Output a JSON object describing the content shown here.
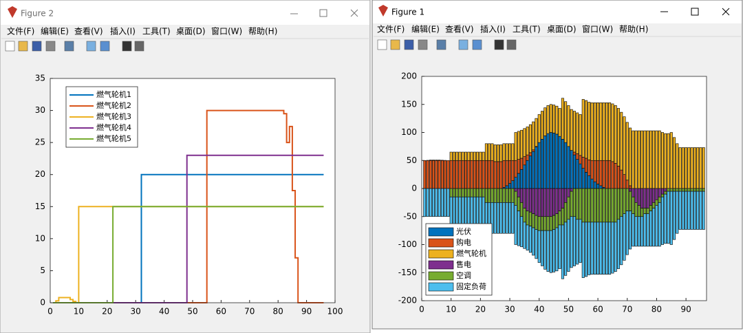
{
  "windows": [
    {
      "title": "Figure 2",
      "menu": [
        "文件(F)",
        "编辑(E)",
        "查看(V)",
        "插入(I)",
        "工具(T)",
        "桌面(D)",
        "窗口(W)",
        "帮助(H)"
      ]
    },
    {
      "title": "Figure 1",
      "menu": [
        "文件(F)",
        "编辑(E)",
        "查看(V)",
        "插入(I)",
        "工具(T)",
        "桌面(D)",
        "窗口(W)",
        "帮助(H)"
      ]
    }
  ],
  "chart_data": [
    {
      "type": "line",
      "step": "post",
      "legend": "upper left",
      "xlim": [
        0,
        100
      ],
      "xticks": [
        0,
        10,
        20,
        30,
        40,
        50,
        60,
        70,
        80,
        90,
        100
      ],
      "ylim": [
        0,
        35
      ],
      "yticks": [
        0,
        5,
        10,
        15,
        20,
        25,
        30,
        35
      ],
      "series": [
        {
          "name": "燃气轮机1",
          "color": "#0072BD",
          "x": [
            1,
            32,
            96
          ],
          "values": [
            0,
            20,
            20
          ]
        },
        {
          "name": "燃气轮机2",
          "color": "#D95319",
          "x": [
            1,
            55,
            82,
            83,
            84,
            85,
            86,
            87,
            96
          ],
          "values": [
            0,
            30,
            29.5,
            25,
            27.5,
            17.5,
            7,
            0,
            0
          ]
        },
        {
          "name": "燃气轮机3",
          "color": "#EDB120",
          "x": [
            1,
            2,
            3,
            7,
            8,
            9,
            10,
            96
          ],
          "values": [
            0,
            0.3,
            0.8,
            0.5,
            0.2,
            0,
            15,
            15
          ]
        },
        {
          "name": "燃气轮机4",
          "color": "#7E2F8E",
          "x": [
            1,
            48,
            96
          ],
          "values": [
            0,
            23,
            23
          ]
        },
        {
          "name": "燃气轮机5",
          "color": "#77AC30",
          "x": [
            1,
            22,
            96
          ],
          "values": [
            0,
            15,
            15
          ]
        }
      ]
    },
    {
      "type": "bar",
      "stacked": true,
      "legend": "lower left",
      "xlim": [
        0,
        97
      ],
      "xticks": [
        0,
        10,
        20,
        30,
        40,
        50,
        60,
        70,
        80,
        90
      ],
      "ylim": [
        -200,
        200
      ],
      "yticks": [
        -200,
        -150,
        -100,
        -50,
        0,
        50,
        100,
        150,
        200
      ],
      "x": [
        1,
        2,
        3,
        4,
        5,
        6,
        7,
        8,
        9,
        10,
        11,
        12,
        13,
        14,
        15,
        16,
        17,
        18,
        19,
        20,
        21,
        22,
        23,
        24,
        25,
        26,
        27,
        28,
        29,
        30,
        31,
        32,
        33,
        34,
        35,
        36,
        37,
        38,
        39,
        40,
        41,
        42,
        43,
        44,
        45,
        46,
        47,
        48,
        49,
        50,
        51,
        52,
        53,
        54,
        55,
        56,
        57,
        58,
        59,
        60,
        61,
        62,
        63,
        64,
        65,
        66,
        67,
        68,
        69,
        70,
        71,
        72,
        73,
        74,
        75,
        76,
        77,
        78,
        79,
        80,
        81,
        82,
        83,
        84,
        85,
        86,
        87,
        88,
        89,
        90,
        91,
        92,
        93,
        94,
        95,
        96
      ],
      "series": [
        {
          "name": "光伏",
          "color": "#0072BD",
          "values": [
            0,
            0,
            0,
            0,
            0,
            0,
            0,
            0,
            0,
            0,
            0,
            0,
            0,
            0,
            0,
            0,
            0,
            0,
            0,
            0,
            0,
            0,
            0,
            0,
            0,
            0,
            0,
            2,
            5,
            9,
            14,
            20,
            27,
            34,
            42,
            50,
            58,
            66,
            74,
            82,
            88,
            94,
            98,
            100,
            99,
            97,
            93,
            88,
            82,
            75,
            68,
            60,
            52,
            44,
            36,
            29,
            23,
            17,
            12,
            8,
            5,
            2,
            0,
            0,
            0,
            0,
            0,
            0,
            0,
            0,
            0,
            0,
            0,
            0,
            0,
            0,
            0,
            0,
            0,
            0,
            0,
            0,
            0,
            0,
            0,
            0,
            0,
            0,
            0,
            0,
            0,
            0,
            0,
            0,
            0,
            0
          ]
        },
        {
          "name": "购电",
          "color": "#D95319",
          "values": [
            50,
            50,
            50,
            50,
            50,
            50,
            50,
            50,
            50,
            50,
            50,
            50,
            50,
            50,
            50,
            50,
            50,
            50,
            50,
            50,
            50,
            50,
            50,
            50,
            48,
            48,
            48,
            48,
            45,
            41,
            36,
            30,
            25,
            20,
            15,
            10,
            6,
            3,
            1,
            0,
            0,
            0,
            0,
            0,
            0,
            0,
            0,
            0,
            0,
            0,
            0,
            5,
            10,
            15,
            20,
            25,
            28,
            33,
            38,
            42,
            45,
            48,
            50,
            50,
            48,
            45,
            40,
            33,
            25,
            15,
            5,
            0,
            0,
            0,
            0,
            0,
            0,
            0,
            0,
            0,
            0,
            0,
            0,
            0,
            0,
            0,
            0,
            0,
            0,
            0,
            0,
            0,
            0,
            0,
            0,
            0
          ]
        },
        {
          "name": "燃气轮机",
          "color": "#EDB120",
          "values": [
            0,
            0.3,
            0.8,
            0.8,
            0.8,
            0.8,
            0.5,
            0.2,
            0,
            15,
            15,
            15,
            15,
            15,
            15,
            15,
            15,
            15,
            15,
            15,
            15,
            30,
            30,
            30,
            30,
            30,
            30,
            30,
            30,
            30,
            30,
            50,
            50,
            50,
            50,
            50,
            50,
            50,
            50,
            50,
            50,
            50,
            50,
            50,
            50,
            50,
            50,
            73,
            73,
            73,
            73,
            73,
            73,
            73,
            103,
            103,
            103,
            103,
            103,
            103,
            103,
            103,
            103,
            103,
            103,
            103,
            103,
            103,
            103,
            103,
            103,
            103,
            103,
            103,
            103,
            103,
            103,
            103,
            103,
            103,
            103,
            100,
            98,
            98,
            100,
            91,
            80,
            73,
            73,
            73,
            73,
            73,
            73,
            73,
            73,
            73
          ]
        },
        {
          "name": "售电",
          "color": "#7E2F8E",
          "values": [
            0,
            0,
            0,
            0,
            0,
            0,
            0,
            0,
            0,
            0,
            0,
            0,
            0,
            0,
            0,
            0,
            0,
            0,
            0,
            0,
            0,
            0,
            0,
            0,
            0,
            0,
            0,
            0,
            0,
            0,
            0,
            -5,
            -15,
            -25,
            -35,
            -40,
            -42,
            -45,
            -48,
            -50,
            -50,
            -50,
            -50,
            -50,
            -48,
            -45,
            -40,
            -35,
            -25,
            -15,
            -5,
            0,
            0,
            0,
            0,
            0,
            0,
            0,
            0,
            0,
            0,
            0,
            0,
            0,
            0,
            0,
            0,
            0,
            0,
            0,
            -5,
            -15,
            -25,
            -30,
            -35,
            -35,
            -35,
            -30,
            -25,
            -20,
            -15,
            -10,
            -5,
            0,
            0,
            0,
            0,
            0,
            0,
            0,
            0,
            0,
            0,
            0,
            0,
            0
          ]
        },
        {
          "name": "空调",
          "color": "#77AC30",
          "values": [
            0,
            0,
            0,
            0,
            0,
            0,
            0,
            0,
            0,
            -15,
            -15,
            -15,
            -15,
            -15,
            -15,
            -15,
            -15,
            -15,
            -15,
            -15,
            -15,
            -25,
            -25,
            -25,
            -25,
            -25,
            -25,
            -25,
            -25,
            -25,
            -25,
            -25,
            -25,
            -25,
            -25,
            -25,
            -25,
            -25,
            -25,
            -25,
            -25,
            -25,
            -25,
            -25,
            -25,
            -25,
            -25,
            -30,
            -35,
            -40,
            -45,
            -50,
            -55,
            -55,
            -60,
            -60,
            -60,
            -60,
            -60,
            -60,
            -60,
            -60,
            -60,
            -60,
            -60,
            -60,
            -55,
            -50,
            -45,
            -40,
            -35,
            -30,
            -25,
            -20,
            -15,
            -10,
            -10,
            -10,
            -10,
            -10,
            -10,
            -5,
            -5,
            -5,
            -5,
            -5,
            -5,
            -5,
            -5,
            -5,
            -5,
            -5,
            -5,
            -5,
            -5,
            -5
          ]
        },
        {
          "name": "固定负荷",
          "color": "#4DBEEE",
          "values": [
            -50,
            -50,
            -50,
            -50,
            -50,
            -50,
            -50,
            -50,
            -50,
            -50,
            -50,
            -50,
            -50,
            -50,
            -50,
            -50,
            -50,
            -50,
            -50,
            -50,
            -50,
            -55,
            -55,
            -55,
            -55,
            -55,
            -55,
            -55,
            -55,
            -55,
            -55,
            -70,
            -62,
            -54,
            -47,
            -45,
            -47,
            -49,
            -52,
            -57,
            -63,
            -69,
            -73,
            -75,
            -76,
            -77,
            -78,
            -96,
            -95,
            -93,
            -91,
            -88,
            -80,
            -77,
            -99,
            -97,
            -94,
            -93,
            -93,
            -93,
            -93,
            -93,
            -93,
            -93,
            -91,
            -88,
            -88,
            -86,
            -83,
            -78,
            -68,
            -58,
            -53,
            -53,
            -53,
            -58,
            -58,
            -63,
            -68,
            -73,
            -78,
            -85,
            -88,
            -93,
            -95,
            -86,
            -75,
            -68,
            -68,
            -68,
            -68,
            -68,
            -68,
            -68,
            -68,
            -68
          ]
        }
      ]
    }
  ]
}
